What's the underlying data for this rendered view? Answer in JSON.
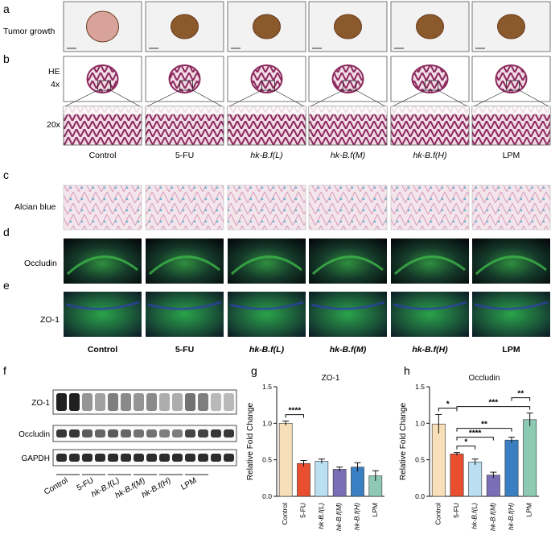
{
  "panels": {
    "a": "a",
    "b": "b",
    "c": "c",
    "d": "d",
    "e": "e",
    "f": "f",
    "g": "g",
    "h": "h"
  },
  "row_labels": {
    "tumor_growth": "Tumor growth",
    "he": "HE",
    "he_4x": "4x",
    "he_20x": "20x",
    "alcian": "Alcian blue",
    "occludin": "Occludin",
    "zo1": "ZO-1"
  },
  "groups": [
    "Control",
    "5-FU",
    "hk-B.f(L)",
    "hk-B.f(M)",
    "hk-B.f(H)",
    "LPM"
  ],
  "western": {
    "bands": [
      "ZO-1",
      "Occludin",
      "GAPDH"
    ],
    "zo1_intensity": [
      0.95,
      0.95,
      0.45,
      0.4,
      0.55,
      0.5,
      0.45,
      0.5,
      0.35,
      0.35,
      0.6,
      0.55,
      0.3,
      0.3
    ],
    "occludin_intensity": [
      0.85,
      0.85,
      0.7,
      0.65,
      0.7,
      0.65,
      0.6,
      0.6,
      0.55,
      0.55,
      0.8,
      0.8,
      0.85,
      0.85
    ],
    "gapdh_intensity": [
      0.9,
      0.9,
      0.9,
      0.9,
      0.9,
      0.9,
      0.9,
      0.9,
      0.9,
      0.9,
      0.9,
      0.9,
      0.9,
      0.9
    ]
  },
  "colors": {
    "control": "#f6dfb9",
    "fu": "#e94f2f",
    "low": "#b9dff1",
    "mid": "#7a6fb7",
    "high": "#3a7fc1",
    "lpm": "#8ec9b4",
    "he": "#8c2a5e",
    "fluor_green": "#3db54a",
    "fluor_blue": "#2f3fae"
  },
  "chart_data": [
    {
      "type": "bar",
      "title": "ZO-1",
      "ylabel": "Relative Fold Change",
      "categories": [
        "Control",
        "5-FU",
        "hk-B.f(L)",
        "hk-B.f(M)",
        "hk-B.f(H)",
        "LPM"
      ],
      "values": [
        1.0,
        0.45,
        0.48,
        0.37,
        0.4,
        0.28
      ],
      "errors": [
        0.03,
        0.04,
        0.03,
        0.03,
        0.06,
        0.07
      ],
      "ylim": [
        0,
        1.5
      ],
      "yticks": [
        "0.0",
        "0.5",
        "1.0",
        "1.5"
      ],
      "significance": [
        {
          "from": 0,
          "to": 1,
          "label": "****"
        }
      ]
    },
    {
      "type": "bar",
      "title": "Occludin",
      "ylabel": "Relative Fold Change",
      "categories": [
        "Control",
        "5-FU",
        "hk-B.f(L)",
        "hk-B.f(M)",
        "hk-B.f(H)",
        "LPM"
      ],
      "values": [
        0.99,
        0.58,
        0.47,
        0.29,
        0.77,
        1.05
      ],
      "errors": [
        0.13,
        0.02,
        0.04,
        0.04,
        0.04,
        0.09
      ],
      "ylim": [
        0,
        1.5
      ],
      "yticks": [
        "0.0",
        "0.5",
        "1.0",
        "1.5"
      ],
      "significance": [
        {
          "from": 0,
          "to": 1,
          "label": "*"
        },
        {
          "from": 1,
          "to": 2,
          "label": "*"
        },
        {
          "from": 1,
          "to": 3,
          "label": "****"
        },
        {
          "from": 1,
          "to": 4,
          "label": "**"
        },
        {
          "from": 1,
          "to": 5,
          "label": "***"
        },
        {
          "from": 4,
          "to": 5,
          "label": "**"
        }
      ]
    }
  ]
}
